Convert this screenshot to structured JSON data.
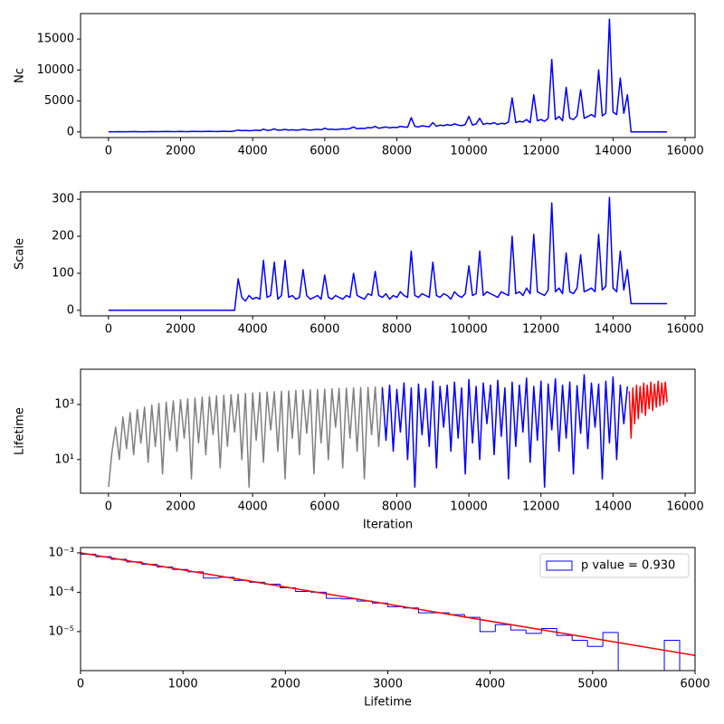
{
  "chart_data": [
    {
      "type": "line",
      "ylabel": "Nc",
      "x": [
        0,
        100,
        200,
        300,
        400,
        500,
        600,
        700,
        800,
        900,
        1000,
        1100,
        1200,
        1300,
        1400,
        1500,
        1600,
        1700,
        1800,
        1900,
        2000,
        2100,
        2200,
        2300,
        2400,
        2500,
        2600,
        2700,
        2800,
        2900,
        3000,
        3100,
        3200,
        3300,
        3400,
        3500,
        3600,
        3700,
        3800,
        3900,
        4000,
        4100,
        4200,
        4300,
        4400,
        4500,
        4600,
        4700,
        4800,
        4900,
        5000,
        5100,
        5200,
        5300,
        5400,
        5500,
        5600,
        5700,
        5800,
        5900,
        6000,
        6100,
        6200,
        6300,
        6400,
        6500,
        6600,
        6700,
        6800,
        6900,
        7000,
        7100,
        7200,
        7300,
        7400,
        7500,
        7600,
        7700,
        7800,
        7900,
        8000,
        8100,
        8200,
        8300,
        8400,
        8500,
        8600,
        8700,
        8800,
        8900,
        9000,
        9100,
        9200,
        9300,
        9400,
        9500,
        9600,
        9700,
        9800,
        9900,
        10000,
        10100,
        10200,
        10300,
        10400,
        10500,
        10600,
        10700,
        10800,
        10900,
        11000,
        11100,
        11200,
        11300,
        11400,
        11500,
        11600,
        11700,
        11800,
        11900,
        12000,
        12100,
        12200,
        12300,
        12400,
        12500,
        12600,
        12700,
        12800,
        12900,
        13000,
        13100,
        13200,
        13300,
        13400,
        13500,
        13600,
        13700,
        13800,
        13900,
        14000,
        14100,
        14200,
        14300,
        14400,
        14500,
        14600,
        14700,
        14800,
        14900,
        15000,
        15100,
        15200,
        15300,
        15400,
        15500
      ],
      "series": [
        {
          "color": "#0000ff",
          "values": [
            30,
            20,
            25,
            40,
            30,
            20,
            35,
            50,
            40,
            30,
            25,
            45,
            60,
            40,
            35,
            50,
            70,
            55,
            40,
            60,
            80,
            50,
            45,
            70,
            90,
            60,
            50,
            80,
            100,
            70,
            60,
            90,
            120,
            80,
            70,
            150,
            300,
            200,
            250,
            180,
            220,
            300,
            200,
            450,
            250,
            300,
            500,
            280,
            320,
            400,
            300,
            350,
            280,
            320,
            450,
            350,
            300,
            380,
            420,
            350,
            600,
            400,
            450,
            380,
            420,
            500,
            450,
            550,
            800,
            500,
            600,
            550,
            700,
            650,
            900,
            600,
            700,
            800,
            650,
            750,
            700,
            900,
            800,
            750,
            2300,
            900,
            800,
            1000,
            900,
            850,
            1500,
            900,
            1100,
            1000,
            1200,
            1050,
            1300,
            1100,
            1000,
            1200,
            2500,
            1100,
            1300,
            2200,
            1200,
            1400,
            1300,
            1500,
            1200,
            1400,
            1300,
            1600,
            5500,
            1500,
            1700,
            1600,
            2000,
            1500,
            6000,
            1800,
            2000,
            1700,
            2200,
            11700,
            2000,
            2500,
            1800,
            7200,
            2200,
            2000,
            2600,
            6800,
            2200,
            2500,
            2800,
            2400,
            10000,
            2600,
            3000,
            18200,
            3200,
            2800,
            8700,
            3000,
            6000,
            0,
            0,
            0,
            0,
            0,
            0,
            0,
            0,
            0,
            0,
            0
          ]
        }
      ],
      "xlim": [
        -775,
        16275
      ],
      "xticks": [
        0,
        2000,
        4000,
        6000,
        8000,
        10000,
        12000,
        14000,
        16000
      ],
      "ylim": [
        -910,
        19110
      ],
      "yticks": [
        0,
        5000,
        10000,
        15000
      ]
    },
    {
      "type": "line",
      "ylabel": "Scale",
      "x": [
        0,
        100,
        200,
        300,
        400,
        500,
        600,
        700,
        800,
        900,
        1000,
        1100,
        1200,
        1300,
        1400,
        1500,
        1600,
        1700,
        1800,
        1900,
        2000,
        2100,
        2200,
        2300,
        2400,
        2500,
        2600,
        2700,
        2800,
        2900,
        3000,
        3100,
        3200,
        3300,
        3400,
        3500,
        3600,
        3700,
        3800,
        3900,
        4000,
        4100,
        4200,
        4300,
        4400,
        4500,
        4600,
        4700,
        4800,
        4900,
        5000,
        5100,
        5200,
        5300,
        5400,
        5500,
        5600,
        5700,
        5800,
        5900,
        6000,
        6100,
        6200,
        6300,
        6400,
        6500,
        6600,
        6700,
        6800,
        6900,
        7000,
        7100,
        7200,
        7300,
        7400,
        7500,
        7600,
        7700,
        7800,
        7900,
        8000,
        8100,
        8200,
        8300,
        8400,
        8500,
        8600,
        8700,
        8800,
        8900,
        9000,
        9100,
        9200,
        9300,
        9400,
        9500,
        9600,
        9700,
        9800,
        9900,
        10000,
        10100,
        10200,
        10300,
        10400,
        10500,
        10600,
        10700,
        10800,
        10900,
        11000,
        11100,
        11200,
        11300,
        11400,
        11500,
        11600,
        11700,
        11800,
        11900,
        12000,
        12100,
        12200,
        12300,
        12400,
        12500,
        12600,
        12700,
        12800,
        12900,
        13000,
        13100,
        13200,
        13300,
        13400,
        13500,
        13600,
        13700,
        13800,
        13900,
        14000,
        14100,
        14200,
        14300,
        14400,
        14500,
        14600,
        14700,
        14800,
        14900,
        15000,
        15100,
        15200,
        15300,
        15400,
        15500
      ],
      "series": [
        {
          "color": "#0000ff",
          "values": [
            0,
            0,
            0,
            0,
            0,
            0,
            0,
            0,
            0,
            0,
            0,
            0,
            0,
            0,
            0,
            0,
            0,
            0,
            0,
            0,
            0,
            0,
            0,
            0,
            0,
            0,
            0,
            0,
            0,
            0,
            0,
            0,
            0,
            0,
            0,
            0,
            85,
            35,
            25,
            40,
            30,
            35,
            30,
            135,
            35,
            40,
            130,
            30,
            40,
            135,
            35,
            40,
            30,
            35,
            110,
            40,
            30,
            35,
            40,
            30,
            95,
            35,
            30,
            40,
            35,
            30,
            40,
            35,
            100,
            40,
            35,
            30,
            45,
            40,
            105,
            40,
            35,
            45,
            30,
            40,
            35,
            50,
            40,
            35,
            160,
            40,
            35,
            45,
            40,
            35,
            130,
            40,
            35,
            45,
            40,
            30,
            50,
            40,
            35,
            45,
            120,
            40,
            45,
            160,
            40,
            50,
            45,
            40,
            35,
            50,
            45,
            40,
            200,
            45,
            50,
            40,
            60,
            45,
            205,
            50,
            45,
            40,
            55,
            290,
            50,
            60,
            45,
            155,
            50,
            45,
            60,
            150,
            50,
            55,
            60,
            50,
            205,
            55,
            65,
            305,
            60,
            50,
            160,
            55,
            110,
            18,
            18,
            18,
            18,
            18,
            18,
            18,
            18,
            18,
            18,
            18
          ]
        }
      ],
      "xlim": [
        -775,
        16275
      ],
      "xticks": [
        0,
        2000,
        4000,
        6000,
        8000,
        10000,
        12000,
        14000,
        16000
      ],
      "ylim": [
        -15,
        320
      ],
      "yticks": [
        0,
        100,
        200,
        300
      ]
    },
    {
      "type": "line",
      "ylabel": "Lifetime",
      "xlabel": "Iteration",
      "log_y": true,
      "series": [
        {
          "color": "#808080",
          "x": [
            0,
            100,
            200,
            300,
            400,
            500,
            600,
            700,
            800,
            900,
            1000,
            1100,
            1200,
            1300,
            1400,
            1500,
            1600,
            1700,
            1800,
            1900,
            2000,
            2100,
            2200,
            2300,
            2400,
            2500,
            2600,
            2700,
            2800,
            2900,
            3000,
            3100,
            3200,
            3300,
            3400,
            3500,
            3600,
            3700,
            3800,
            3900,
            4000,
            4100,
            4200,
            4300,
            4400,
            4500,
            4600,
            4700,
            4800,
            4900,
            5000,
            5100,
            5200,
            5300,
            5400,
            5500,
            5600,
            5700,
            5800,
            5900,
            6000,
            6100,
            6200,
            6300,
            6400,
            6500,
            6600,
            6700,
            6800,
            6900,
            7000,
            7100,
            7200,
            7300,
            7400,
            7500,
            7600
          ],
          "values": [
            1,
            20,
            150,
            10,
            350,
            25,
            500,
            15,
            650,
            40,
            800,
            8,
            950,
            30,
            1100,
            3,
            1200,
            50,
            1350,
            20,
            1500,
            60,
            1600,
            2,
            1700,
            40,
            1850,
            15,
            1950,
            80,
            2050,
            5,
            2150,
            30,
            2250,
            100,
            2400,
            10,
            2500,
            1,
            2600,
            50,
            2700,
            8,
            2800,
            120,
            2900,
            20,
            3000,
            2,
            3100,
            60,
            3200,
            15,
            3300,
            90,
            3400,
            3,
            3500,
            40,
            3600,
            10,
            3700,
            150,
            3800,
            5,
            3900,
            60,
            4000,
            20,
            4100,
            2,
            4200,
            80,
            4300,
            30,
            4400
          ]
        },
        {
          "color": "#0000ff",
          "x": [
            7600,
            7700,
            7800,
            7900,
            8000,
            8100,
            8200,
            8300,
            8400,
            8500,
            8600,
            8700,
            8800,
            8900,
            9000,
            9100,
            9200,
            9300,
            9400,
            9500,
            9600,
            9700,
            9800,
            9900,
            10000,
            10100,
            10200,
            10300,
            10400,
            10500,
            10600,
            10700,
            10800,
            10900,
            11000,
            11100,
            11200,
            11300,
            11400,
            11500,
            11600,
            11700,
            11800,
            11900,
            12000,
            12100,
            12200,
            12300,
            12400,
            12500,
            12600,
            12700,
            12800,
            12900,
            13000,
            13100,
            13200,
            13300,
            13400,
            13500,
            13600,
            13700,
            13800,
            13900,
            14000,
            14100,
            14200,
            14300,
            14400
          ],
          "values": [
            4000,
            50,
            5000,
            20,
            3500,
            100,
            6000,
            10,
            4000,
            1,
            5500,
            80,
            3800,
            30,
            7000,
            5,
            4500,
            150,
            5000,
            20,
            6500,
            60,
            4000,
            3,
            8000,
            40,
            4500,
            10,
            6000,
            200,
            5000,
            15,
            7500,
            70,
            4000,
            2,
            6500,
            30,
            5000,
            100,
            9000,
            8,
            4500,
            50,
            7000,
            1,
            5500,
            120,
            8500,
            20,
            5000,
            60,
            6500,
            3,
            4800,
            90,
            12000,
            25,
            6000,
            150,
            5500,
            2,
            7000,
            40,
            10000,
            10,
            5000,
            200,
            4500
          ]
        },
        {
          "color": "#ff0000",
          "x": [
            14450,
            14500,
            14550,
            14600,
            14650,
            14700,
            14750,
            14800,
            14850,
            14900,
            14950,
            15000,
            15050,
            15100,
            15150,
            15200,
            15250,
            15300,
            15350,
            15400,
            15450,
            15500
          ],
          "values": [
            3000,
            60,
            4000,
            200,
            5000,
            300,
            4500,
            500,
            6000,
            400,
            5000,
            700,
            6500,
            600,
            5500,
            800,
            7000,
            900,
            6000,
            1000,
            6500,
            1200
          ]
        }
      ],
      "xlim": [
        -775,
        16275
      ],
      "xticks": [
        0,
        2000,
        4000,
        6000,
        8000,
        10000,
        12000,
        14000,
        16000
      ],
      "ylim": [
        0.6,
        19000
      ],
      "yticks": [
        {
          "value": 10,
          "label": "10¹"
        },
        {
          "value": 1000,
          "label": "10³"
        }
      ]
    },
    {
      "type": "histogram",
      "xlabel": "Lifetime",
      "log_y": true,
      "legend": "upper right",
      "name": "p value = 0.930",
      "color": "#0000ff",
      "bins": [
        0,
        150,
        300,
        450,
        600,
        750,
        900,
        1050,
        1200,
        1350,
        1500,
        1650,
        1800,
        1950,
        2100,
        2250,
        2400,
        2550,
        2700,
        2850,
        3000,
        3150,
        3300,
        3450,
        3600,
        3750,
        3900,
        4050,
        4200,
        4350,
        4500,
        4650,
        4800,
        4950,
        5100,
        5250,
        5400,
        5550,
        5700,
        5850,
        6000
      ],
      "values": [
        0.00093,
        0.0008,
        0.00069,
        0.00059,
        0.00051,
        0.00044,
        0.00038,
        0.00033,
        0.00023,
        0.00024,
        0.0002,
        0.00018,
        0.00016,
        0.00013,
        0.000105,
        0.0001,
        7e-05,
        6.8e-05,
        6e-05,
        5.3e-05,
        4.3e-05,
        4e-05,
        3e-05,
        3e-05,
        2.7e-05,
        2.3e-05,
        1e-05,
        1.5e-05,
        1.1e-05,
        9e-06,
        1.2e-05,
        8e-06,
        6e-06,
        4.2e-06,
        9.5e-06,
        0,
        0,
        0,
        6e-06,
        0
      ],
      "fit": {
        "color": "#ff0000",
        "x": [
          0,
          6000
        ],
        "values": [
          0.001,
          2.48e-06
        ]
      },
      "xlim": [
        0,
        6000
      ],
      "xticks": [
        0,
        1000,
        2000,
        3000,
        4000,
        5000,
        6000
      ],
      "ylim": [
        1.02e-06,
        0.00137
      ],
      "yticks": [
        {
          "value": 1e-05,
          "label": "10⁻⁵"
        },
        {
          "value": 0.0001,
          "label": "10⁻⁴"
        },
        {
          "value": 0.001,
          "label": "10⁻³"
        }
      ]
    }
  ]
}
